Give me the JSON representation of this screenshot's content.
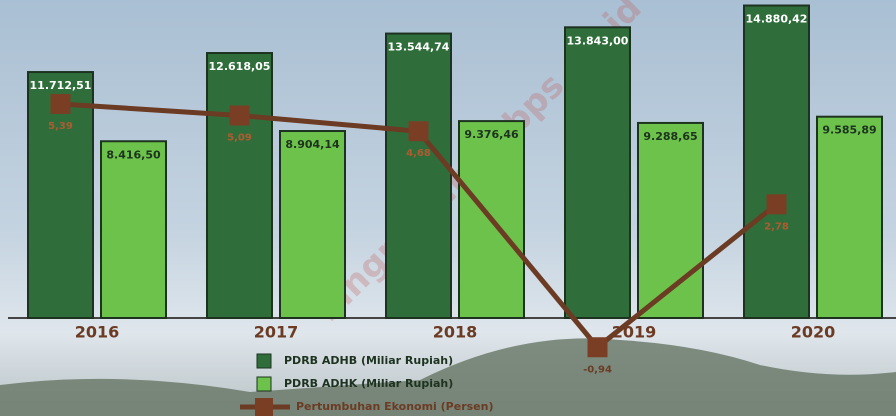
{
  "chart_data": {
    "type": "bar",
    "categories": [
      "2016",
      "2017",
      "2018",
      "2019",
      "2020"
    ],
    "series": [
      {
        "name": "PDRB ADHB (Miliar Rupiah)",
        "color": "#2f6e3b",
        "values": [
          11712.51,
          12618.05,
          13544.74,
          13843.0,
          14880.42
        ],
        "value_labels": [
          "11.712,51",
          "12.618,05",
          "13.544,74",
          "13.843,00",
          "14.880,42"
        ]
      },
      {
        "name": "PDRB ADHK (Miliar Rupiah)",
        "color": "#6cc24a",
        "values": [
          8416.5,
          8904.14,
          9376.46,
          9288.65,
          9585.89
        ],
        "value_labels": [
          "8.416,50",
          "8.904,14",
          "9.376,46",
          "9.288,65",
          "9.585,89"
        ]
      },
      {
        "name": "Pertumbuhan Ekonomi (Persen)",
        "type": "line",
        "axis": "y2",
        "color": "#6b3b24",
        "values": [
          5.39,
          5.09,
          4.68,
          -0.94,
          2.78
        ],
        "value_labels": [
          "5,39",
          "5,09",
          "4,68",
          "-0,94",
          "2,78"
        ]
      }
    ],
    "ylim": [
      0,
      15000
    ],
    "y2lim": [
      -2,
      6
    ],
    "watermark": "ilingnatalkab.bps.go.id"
  }
}
